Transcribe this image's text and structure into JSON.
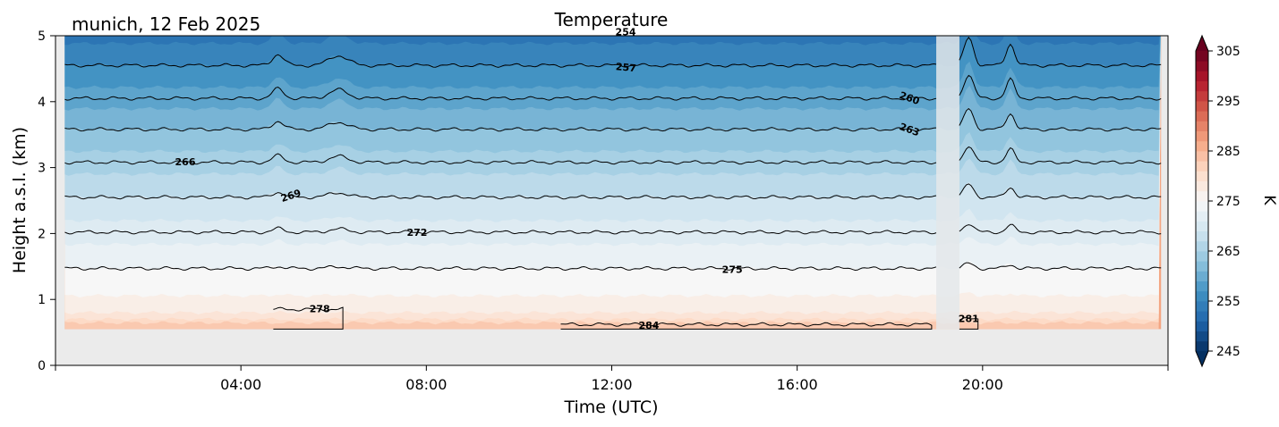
{
  "header": {
    "location_date": "munich, 12 Feb 2025",
    "title": "Temperature"
  },
  "chart_data": {
    "type": "heatmap",
    "title": "Temperature",
    "xlabel": "Time (UTC)",
    "ylabel": "Height a.s.l. (km)",
    "x_unit": "hours UTC",
    "xlim": [
      0,
      24
    ],
    "ylim": [
      0,
      5
    ],
    "x_ticks": [
      {
        "value": 4,
        "label": "04:00"
      },
      {
        "value": 8,
        "label": "08:00"
      },
      {
        "value": 12,
        "label": "12:00"
      },
      {
        "value": 16,
        "label": "16:00"
      },
      {
        "value": 20,
        "label": "20:00"
      }
    ],
    "y_ticks": [
      {
        "value": 0,
        "label": "0"
      },
      {
        "value": 1,
        "label": "1"
      },
      {
        "value": 2,
        "label": "2"
      },
      {
        "value": 3,
        "label": "3"
      },
      {
        "value": 4,
        "label": "4"
      },
      {
        "value": 5,
        "label": "5"
      }
    ],
    "data_start_km": 0.55,
    "data_gap_hours": [
      19.0,
      19.5
    ],
    "colorbar": {
      "label": "K",
      "min": 245,
      "max": 305,
      "step": 2,
      "ticks": [
        "245",
        "255",
        "265",
        "275",
        "285",
        "295",
        "305"
      ],
      "colormap": [
        "#053061",
        "#2166ac",
        "#4393c3",
        "#92c5de",
        "#d1e5f0",
        "#f7f7f7",
        "#fddbc7",
        "#f4a582",
        "#d6604d",
        "#b2182b",
        "#67001f"
      ]
    },
    "contours": [
      {
        "value": 254,
        "height_km": 5.05,
        "label": "254",
        "label_time": 12.3,
        "label_angle": 0
      },
      {
        "value": 257,
        "height_km": 4.55,
        "label": "257",
        "label_time": 12.3,
        "label_angle": 5
      },
      {
        "value": 260,
        "height_km": 4.05,
        "label": "260",
        "label_time": 18.4,
        "label_angle": 20
      },
      {
        "value": 263,
        "height_km": 3.58,
        "label": "263",
        "label_time": 18.4,
        "label_angle": 20
      },
      {
        "value": 266,
        "height_km": 3.08,
        "label": "266",
        "label_time": 2.8,
        "label_angle": 0
      },
      {
        "value": 269,
        "height_km": 2.55,
        "label": "269",
        "label_time": 5.1,
        "label_angle": -18
      },
      {
        "value": 272,
        "height_km": 2.02,
        "label": "272",
        "label_time": 7.8,
        "label_angle": 0
      },
      {
        "value": 275,
        "height_km": 1.47,
        "label": "275",
        "label_time": 14.6,
        "label_angle": 0
      },
      {
        "value": 278,
        "height_km": 0.85,
        "label": "278",
        "label_time": 5.7,
        "label_angle": 0
      },
      {
        "value": 281,
        "height_km": 0.7,
        "label": "281",
        "label_time": 19.7,
        "label_angle": 0
      },
      {
        "value": 284,
        "height_km": 0.62,
        "label": "284",
        "label_time": 12.8,
        "label_angle": 0
      }
    ],
    "grid": false,
    "legend": "colorbar-right"
  },
  "palette": {
    "missing": "#ebebeb",
    "axis": "#000000",
    "contour": "#000000"
  }
}
